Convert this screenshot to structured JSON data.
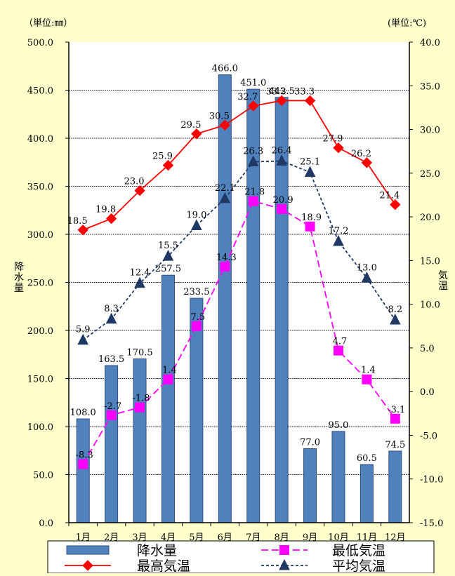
{
  "chart_data": {
    "type": "bar+line",
    "categories": [
      "1月",
      "2月",
      "3月",
      "4月",
      "5月",
      "6月",
      "7月",
      "8月",
      "9月",
      "10月",
      "11月",
      "12月"
    ],
    "left_axis": {
      "unit_label": "（単位:㎜）",
      "label": "降水量",
      "ylim": [
        0,
        500
      ],
      "ticks": [
        "0.0",
        "50.0",
        "100.0",
        "150.0",
        "200.0",
        "250.0",
        "300.0",
        "350.0",
        "400.0",
        "450.0",
        "500.0"
      ]
    },
    "right_axis": {
      "unit_label": "(単位:℃)",
      "label": "気温",
      "ylim": [
        -15,
        40
      ],
      "ticks": [
        "-15.0",
        "-10.0",
        "-5.0",
        "0.0",
        "5.0",
        "10.0",
        "15.0",
        "20.0",
        "25.0",
        "30.0",
        "35.0",
        "40.0"
      ]
    },
    "grid": true,
    "series": [
      {
        "name": "降水量",
        "type": "bar",
        "axis": "left",
        "color": "#4F81BD",
        "values": [
          108.0,
          163.5,
          170.5,
          257.5,
          233.5,
          466.0,
          451.0,
          442.5,
          77.0,
          95.0,
          60.5,
          74.5
        ],
        "labels": [
          "108.0",
          "163.5",
          "170.5",
          "257.5",
          "233.5",
          "466.0",
          "451.0",
          "442.5",
          "77.0",
          "95.0",
          "60.5",
          "74.5"
        ]
      },
      {
        "name": "最高気温",
        "type": "line",
        "axis": "right",
        "color": "#FF0000",
        "marker": "diamond",
        "dash": "solid",
        "values": [
          18.5,
          19.8,
          23.0,
          25.9,
          29.5,
          30.5,
          32.7,
          33.3,
          33.3,
          27.9,
          26.2,
          21.4
        ],
        "labels": [
          "18.5",
          "19.8",
          "23.0",
          "25.9",
          "29.5",
          "30.5",
          "32.7",
          "33.3",
          "33.3",
          "27.9",
          "26.2",
          "21.4"
        ]
      },
      {
        "name": "最低気温",
        "type": "line",
        "axis": "right",
        "color": "#FF00FF",
        "marker": "square",
        "dash": "long-dash",
        "values": [
          -8.3,
          -2.7,
          -1.8,
          1.4,
          7.5,
          14.3,
          21.8,
          20.9,
          18.9,
          4.7,
          1.4,
          -3.1
        ],
        "labels": [
          "-8.3",
          "-2.7",
          "-1.8",
          "1.4",
          "7.5",
          "14.3",
          "21.8",
          "20.9",
          "18.9",
          "4.7",
          "1.4",
          "-3.1"
        ]
      },
      {
        "name": "平均気温",
        "type": "line",
        "axis": "right",
        "color": "#1F3864",
        "marker": "triangle",
        "dash": "short-dash",
        "values": [
          5.9,
          8.3,
          12.4,
          15.5,
          19.0,
          22.1,
          26.3,
          26.4,
          25.1,
          17.2,
          13.0,
          8.2
        ],
        "labels": [
          "5.9",
          "8.3",
          "12.4",
          "15.5",
          "19.0",
          "22.1",
          "26.3",
          "26.4",
          "25.1",
          "17.2",
          "13.0",
          "8.2"
        ]
      }
    ],
    "legend_position": "bottom"
  }
}
